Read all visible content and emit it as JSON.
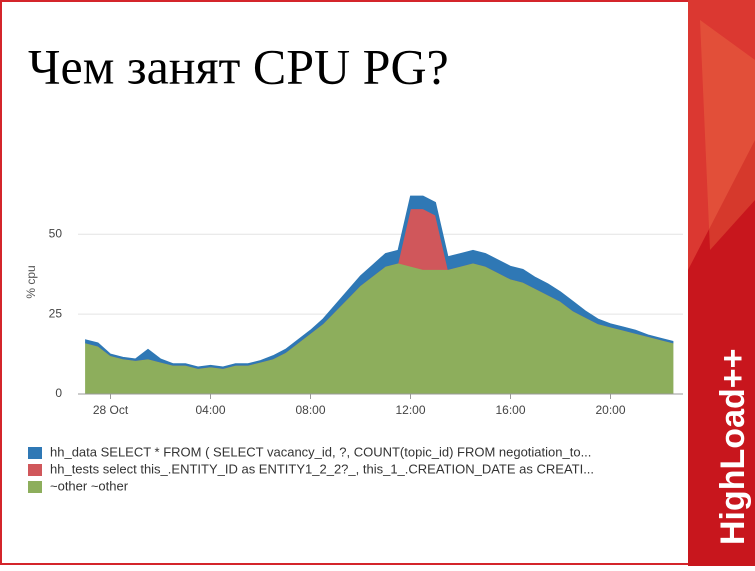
{
  "slide_title": "Чем занят CPU PG?",
  "branding": {
    "logo": "HighLoad++"
  },
  "chart_data": {
    "type": "stacked-area",
    "y_label": "% cpu",
    "x": [
      -1,
      -0.5,
      0,
      0.5,
      1,
      1.5,
      2,
      2.5,
      3,
      3.5,
      4,
      4.5,
      5,
      5.5,
      6,
      6.5,
      7,
      7.5,
      8,
      8.5,
      9,
      9.5,
      10,
      10.5,
      11,
      11.5,
      12,
      12.5,
      13,
      13.5,
      14,
      14.5,
      15,
      15.5,
      16,
      16.5,
      17,
      17.5,
      18,
      18.5,
      19,
      19.5,
      20,
      20.5,
      21,
      21.5,
      22,
      22.5
    ],
    "xlim": [
      -1.3,
      22.9
    ],
    "xticks": [
      {
        "value": 0,
        "label": "28 Oct"
      },
      {
        "value": 4,
        "label": "04:00"
      },
      {
        "value": 8,
        "label": "08:00"
      },
      {
        "value": 12,
        "label": "12:00"
      },
      {
        "value": 16,
        "label": "16:00"
      },
      {
        "value": 20,
        "label": "20:00"
      }
    ],
    "ylim": [
      0,
      67
    ],
    "yticks": [
      0,
      25,
      50
    ],
    "grid": true,
    "series": [
      {
        "name": "hh_data SELECT * FROM ( SELECT vacancy_id, ?, COUNT(topic_id) FROM negotiation_to...",
        "color": "#2f78b5",
        "values": [
          1,
          1,
          0.5,
          0.5,
          0.5,
          3,
          1,
          0.5,
          0.5,
          0.5,
          0.5,
          0.5,
          0.5,
          0.5,
          0.5,
          1,
          1,
          1,
          1,
          1.5,
          2,
          2.5,
          3,
          3.5,
          4,
          4,
          4,
          4,
          4,
          4,
          4,
          4,
          4,
          4,
          4,
          4,
          3.5,
          3.5,
          3,
          3,
          2,
          1.5,
          1,
          1,
          1,
          0.5,
          0.5,
          0.5
        ]
      },
      {
        "name": "hh_tests select this_.ENTITY_ID as ENTITY1_2_2?_, this_1_.CREATION_DATE as CREATI...",
        "color": "#d0575b",
        "values": [
          0,
          0,
          0,
          0,
          0,
          0,
          0,
          0,
          0,
          0,
          0,
          0,
          0,
          0,
          0,
          0,
          0,
          0,
          0,
          0,
          0,
          0,
          0,
          0,
          0,
          0,
          18,
          19,
          17,
          0,
          0,
          0,
          0,
          0,
          0,
          0,
          0,
          0,
          0,
          0,
          0,
          0,
          0,
          0,
          0,
          0,
          0,
          0
        ]
      },
      {
        "name": "~other ~other",
        "color": "#8dae5c",
        "values": [
          16,
          15,
          12,
          11,
          10.5,
          11,
          10,
          9,
          9,
          8,
          8.5,
          8,
          9,
          9,
          10,
          11,
          13,
          16,
          19,
          22,
          26,
          30,
          34,
          37,
          40,
          41,
          40,
          39,
          39,
          39,
          40,
          41,
          40,
          38,
          36,
          35,
          33,
          31,
          29,
          26,
          24,
          22,
          21,
          20,
          19,
          18,
          17,
          16
        ]
      }
    ]
  }
}
